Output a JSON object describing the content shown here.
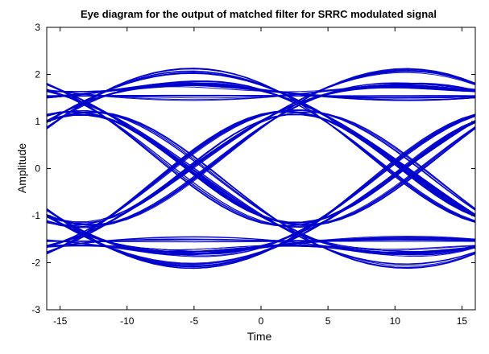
{
  "chart_data": {
    "type": "line",
    "title": "Eye diagram for the output of matched filter for SRRC modulated signal",
    "xlabel": "Time",
    "ylabel": "Amplitude",
    "xlim": [
      -16,
      16
    ],
    "ylim": [
      -3,
      3
    ],
    "xticks": [
      -15,
      -10,
      -5,
      0,
      5,
      10,
      15
    ],
    "yticks": [
      -3,
      -2,
      -1,
      0,
      1,
      2,
      3
    ],
    "xtick_labels": [
      "-15",
      "-10",
      "-5",
      "0",
      "5",
      "10",
      "15"
    ],
    "ytick_labels": [
      "-3",
      "-2",
      "-1",
      "0",
      "1",
      "2",
      "3"
    ],
    "grid": false,
    "line_color": "#0000cc",
    "eye": {
      "symbol_period": 16,
      "sampling_instant": 0,
      "symbol_levels": [
        -1,
        1
      ],
      "rolloff": 0.5,
      "span_symbols": 6,
      "samples_per_symbol": 16,
      "trace_count": 180,
      "seed": 12345
    }
  }
}
